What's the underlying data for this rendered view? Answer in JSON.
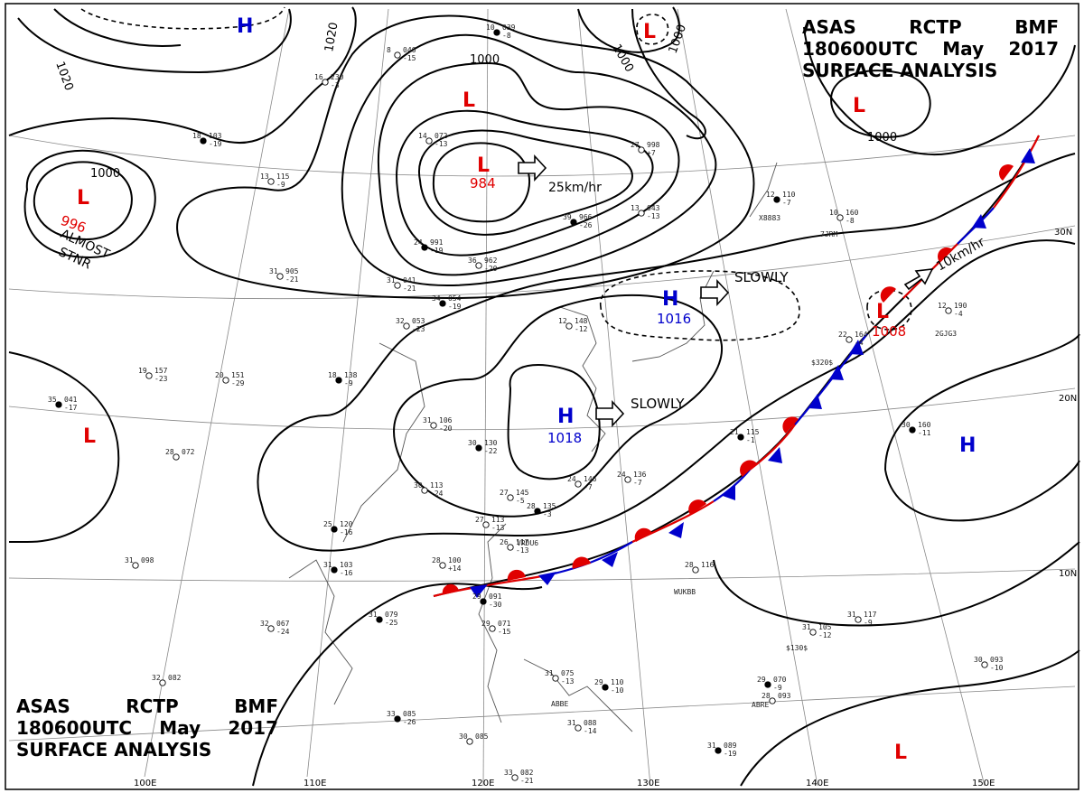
{
  "header_top": {
    "agency": "ASAS",
    "station": "RCTP",
    "code": "BMF",
    "time": "180600UTC",
    "month": "May",
    "year": "2017",
    "title": "SURFACE ANALYSIS"
  },
  "header_bottom": {
    "agency": "ASAS",
    "station": "RCTP",
    "code": "BMF",
    "time": "180600UTC",
    "month": "May",
    "year": "2017",
    "title": "SURFACE ANALYSIS"
  },
  "colors": {
    "low": "#e00000",
    "high": "#0000cc",
    "front_warm": "#e00000",
    "front_cold": "#0000cc",
    "line": "#000000"
  },
  "pressure_centers": [
    {
      "id": "low-nw",
      "type": "L",
      "value": "996",
      "note": "ALMOST STNR"
    },
    {
      "id": "low-mongolia",
      "type": "L",
      "value": "984",
      "motion": "25km/hr"
    },
    {
      "id": "low-north",
      "type": "L",
      "value": ""
    },
    {
      "id": "low-ne",
      "type": "L",
      "value": ""
    },
    {
      "id": "low-top",
      "type": "L",
      "value": ""
    },
    {
      "id": "low-west",
      "type": "L",
      "value": ""
    },
    {
      "id": "low-pacific",
      "type": "L",
      "value": "1008",
      "motion": "10km/hr"
    },
    {
      "id": "low-south",
      "type": "L",
      "value": ""
    },
    {
      "id": "high-sea-japan",
      "type": "H",
      "value": "1016",
      "motion": "SLOWLY"
    },
    {
      "id": "high-east-china",
      "type": "H",
      "value": "1018",
      "motion": "SLOWLY"
    },
    {
      "id": "high-east",
      "type": "H",
      "value": ""
    },
    {
      "id": "high-nw",
      "type": "H",
      "value": ""
    }
  ],
  "isobar_labels": [
    "1020",
    "1020",
    "1000",
    "1000",
    "1000",
    "1000",
    "1000"
  ],
  "lat_labels": [
    "30N",
    "20N",
    "10N"
  ],
  "lon_labels": [
    "100E",
    "110E",
    "120E",
    "130E",
    "140E",
    "150E"
  ],
  "stations": [
    {
      "t": "18",
      "p": "103",
      "d": "-19"
    },
    {
      "t": "13",
      "p": "115",
      "d": "-9"
    },
    {
      "t": "14",
      "p": "072",
      "d": "-13"
    },
    {
      "t": "10",
      "p": "039",
      "d": "-8"
    },
    {
      "t": "8",
      "p": "046",
      "d": "-15"
    },
    {
      "t": "16",
      "p": "230",
      "d": "-3"
    },
    {
      "t": "24",
      "p": "991",
      "d": "-19"
    },
    {
      "t": "31",
      "p": "905",
      "d": "-21"
    },
    {
      "t": "36",
      "p": "962",
      "d": "-20"
    },
    {
      "t": "39",
      "p": "966",
      "d": "-26"
    },
    {
      "t": "27",
      "p": "998",
      "d": "+7"
    },
    {
      "t": "13",
      "p": "043",
      "d": "-13"
    },
    {
      "t": "12",
      "p": "110",
      "d": "-7"
    },
    {
      "t": "10",
      "p": "160",
      "d": "-8"
    },
    {
      "t": "31",
      "p": "041",
      "d": "-21"
    },
    {
      "t": "34",
      "p": "054",
      "d": "-19"
    },
    {
      "t": "32",
      "p": "053",
      "d": "-23"
    },
    {
      "t": "12",
      "p": "148",
      "d": "-12"
    },
    {
      "t": "18",
      "p": "138",
      "d": "-9"
    },
    {
      "t": "20",
      "p": "151",
      "d": "-29"
    },
    {
      "t": "19",
      "p": "157",
      "d": "-23"
    },
    {
      "t": "35",
      "p": "041",
      "d": "-17"
    },
    {
      "t": "28",
      "p": "072",
      "d": ""
    },
    {
      "t": "31",
      "p": "106",
      "d": "-20"
    },
    {
      "t": "30",
      "p": "130",
      "d": "-22"
    },
    {
      "t": "30",
      "p": "113",
      "d": "-24"
    },
    {
      "t": "27",
      "p": "145",
      "d": "-5"
    },
    {
      "t": "28",
      "p": "135",
      "d": "-3"
    },
    {
      "t": "24",
      "p": "146",
      "d": "-7"
    },
    {
      "t": "24",
      "p": "136",
      "d": "-7"
    },
    {
      "t": "25",
      "p": "120",
      "d": "-16"
    },
    {
      "t": "27",
      "p": "113",
      "d": "-13"
    },
    {
      "t": "26",
      "p": "117",
      "d": "-13"
    },
    {
      "t": "31",
      "p": "103",
      "d": "-16"
    },
    {
      "t": "28",
      "p": "100",
      "d": "+14"
    },
    {
      "t": "31",
      "p": "098",
      "d": ""
    },
    {
      "t": "31",
      "p": "079",
      "d": "-25"
    },
    {
      "t": "32",
      "p": "067",
      "d": "-24"
    },
    {
      "t": "32",
      "p": "082",
      "d": ""
    },
    {
      "t": "33",
      "p": "085",
      "d": "-26"
    },
    {
      "t": "30",
      "p": "085",
      "d": ""
    },
    {
      "t": "33",
      "p": "082",
      "d": "-21"
    },
    {
      "t": "29",
      "p": "091",
      "d": "-30"
    },
    {
      "t": "29",
      "p": "071",
      "d": "-15"
    },
    {
      "t": "31",
      "p": "075",
      "d": "-13"
    },
    {
      "t": "29",
      "p": "110",
      "d": "-10"
    },
    {
      "t": "31",
      "p": "088",
      "d": "-14"
    },
    {
      "t": "28",
      "p": "116",
      "d": ""
    },
    {
      "t": "21",
      "p": "115",
      "d": "-1"
    },
    {
      "t": "22",
      "p": "164",
      "d": "-4"
    },
    {
      "t": "12",
      "p": "190",
      "d": "-4"
    },
    {
      "t": "30",
      "p": "160",
      "d": "-11"
    },
    {
      "t": "31",
      "p": "105",
      "d": "-12"
    },
    {
      "t": "31",
      "p": "117",
      "d": "-9"
    },
    {
      "t": "29",
      "p": "070",
      "d": "-9"
    },
    {
      "t": "28",
      "p": "093",
      "d": ""
    },
    {
      "t": "30",
      "p": "093",
      "d": "-10"
    },
    {
      "t": "31",
      "p": "089",
      "d": "-19"
    }
  ],
  "station_ids": [
    "X8883",
    "7JRM",
    "2GJG3",
    "$320$",
    "VRDU6",
    "WUKBB",
    "$130$",
    "ABRE",
    "ABBE"
  ]
}
